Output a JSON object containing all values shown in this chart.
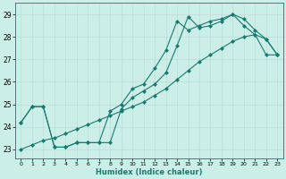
{
  "xlabel": "Humidex (Indice chaleur)",
  "background_color": "#cceee8",
  "grid_color": "#b8ddd8",
  "line_color": "#1a7a6e",
  "xlim": [
    -0.5,
    23.5
  ],
  "ylim": [
    22.6,
    29.5
  ],
  "yticks": [
    23,
    24,
    25,
    26,
    27,
    28,
    29
  ],
  "xticks": [
    0,
    1,
    2,
    3,
    4,
    5,
    6,
    7,
    8,
    9,
    10,
    11,
    12,
    13,
    14,
    15,
    16,
    17,
    18,
    19,
    20,
    21,
    22,
    23
  ],
  "line1": {
    "x": [
      0,
      1,
      2,
      3,
      4,
      5,
      6,
      7,
      8,
      9,
      10,
      11,
      12,
      13,
      14,
      15,
      16,
      17,
      18,
      19,
      20,
      21,
      22,
      23
    ],
    "y": [
      24.2,
      24.9,
      24.9,
      23.1,
      23.1,
      23.3,
      23.3,
      23.3,
      23.3,
      24.8,
      25.3,
      25.6,
      25.9,
      26.4,
      27.6,
      28.9,
      28.4,
      28.5,
      28.7,
      29.0,
      28.8,
      28.3,
      27.9,
      27.2
    ]
  },
  "line2": {
    "x": [
      0,
      1,
      2,
      3,
      4,
      5,
      6,
      7,
      8,
      9,
      10,
      11,
      12,
      13,
      14,
      15,
      16,
      17,
      18,
      19,
      20,
      21,
      22,
      23
    ],
    "y": [
      24.2,
      24.9,
      24.9,
      23.1,
      23.1,
      23.3,
      23.3,
      23.3,
      24.7,
      25.0,
      25.7,
      25.9,
      26.6,
      27.4,
      28.7,
      28.3,
      28.5,
      28.7,
      28.8,
      29.0,
      28.5,
      28.1,
      27.2,
      27.2
    ]
  },
  "line3": {
    "x": [
      0,
      1,
      2,
      3,
      4,
      5,
      6,
      7,
      8,
      9,
      10,
      11,
      12,
      13,
      14,
      15,
      16,
      17,
      18,
      19,
      20,
      21,
      22,
      23
    ],
    "y": [
      23.0,
      23.2,
      23.4,
      23.5,
      23.7,
      23.9,
      24.1,
      24.3,
      24.5,
      24.7,
      24.9,
      25.1,
      25.4,
      25.7,
      26.1,
      26.5,
      26.9,
      27.2,
      27.5,
      27.8,
      28.0,
      28.1,
      27.9,
      27.2
    ]
  }
}
